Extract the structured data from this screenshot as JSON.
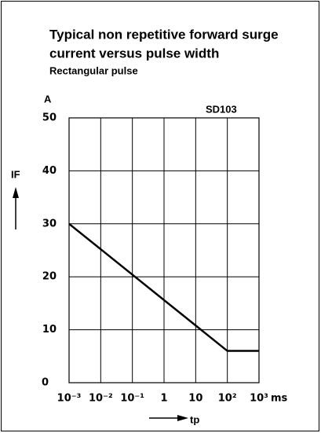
{
  "chart_data": {
    "type": "line",
    "title": [
      "Typical non repetitive forward surge",
      "current versus pulse width"
    ],
    "subtitle": "Rectangular pulse",
    "y_unit": "A",
    "y_label": "IF",
    "x_label": "tp",
    "x_unit": "ms",
    "annotation": "SD103",
    "x": [
      0.001,
      100,
      1000
    ],
    "values": [
      30,
      6,
      6
    ],
    "color": "#000000",
    "log_x": true,
    "grid": true,
    "xlim": [
      0.001,
      1000
    ],
    "xticks": [
      {
        "value": 0.001,
        "label": "10⁻³"
      },
      {
        "value": 0.01,
        "label": "10⁻²"
      },
      {
        "value": 0.1,
        "label": "10⁻¹"
      },
      1,
      10,
      {
        "value": 100,
        "label": "10²"
      },
      {
        "value": 1000,
        "label": "10³"
      }
    ],
    "ylim": [
      0,
      50
    ],
    "yticks": [
      0,
      10,
      20,
      30,
      40,
      50
    ]
  }
}
